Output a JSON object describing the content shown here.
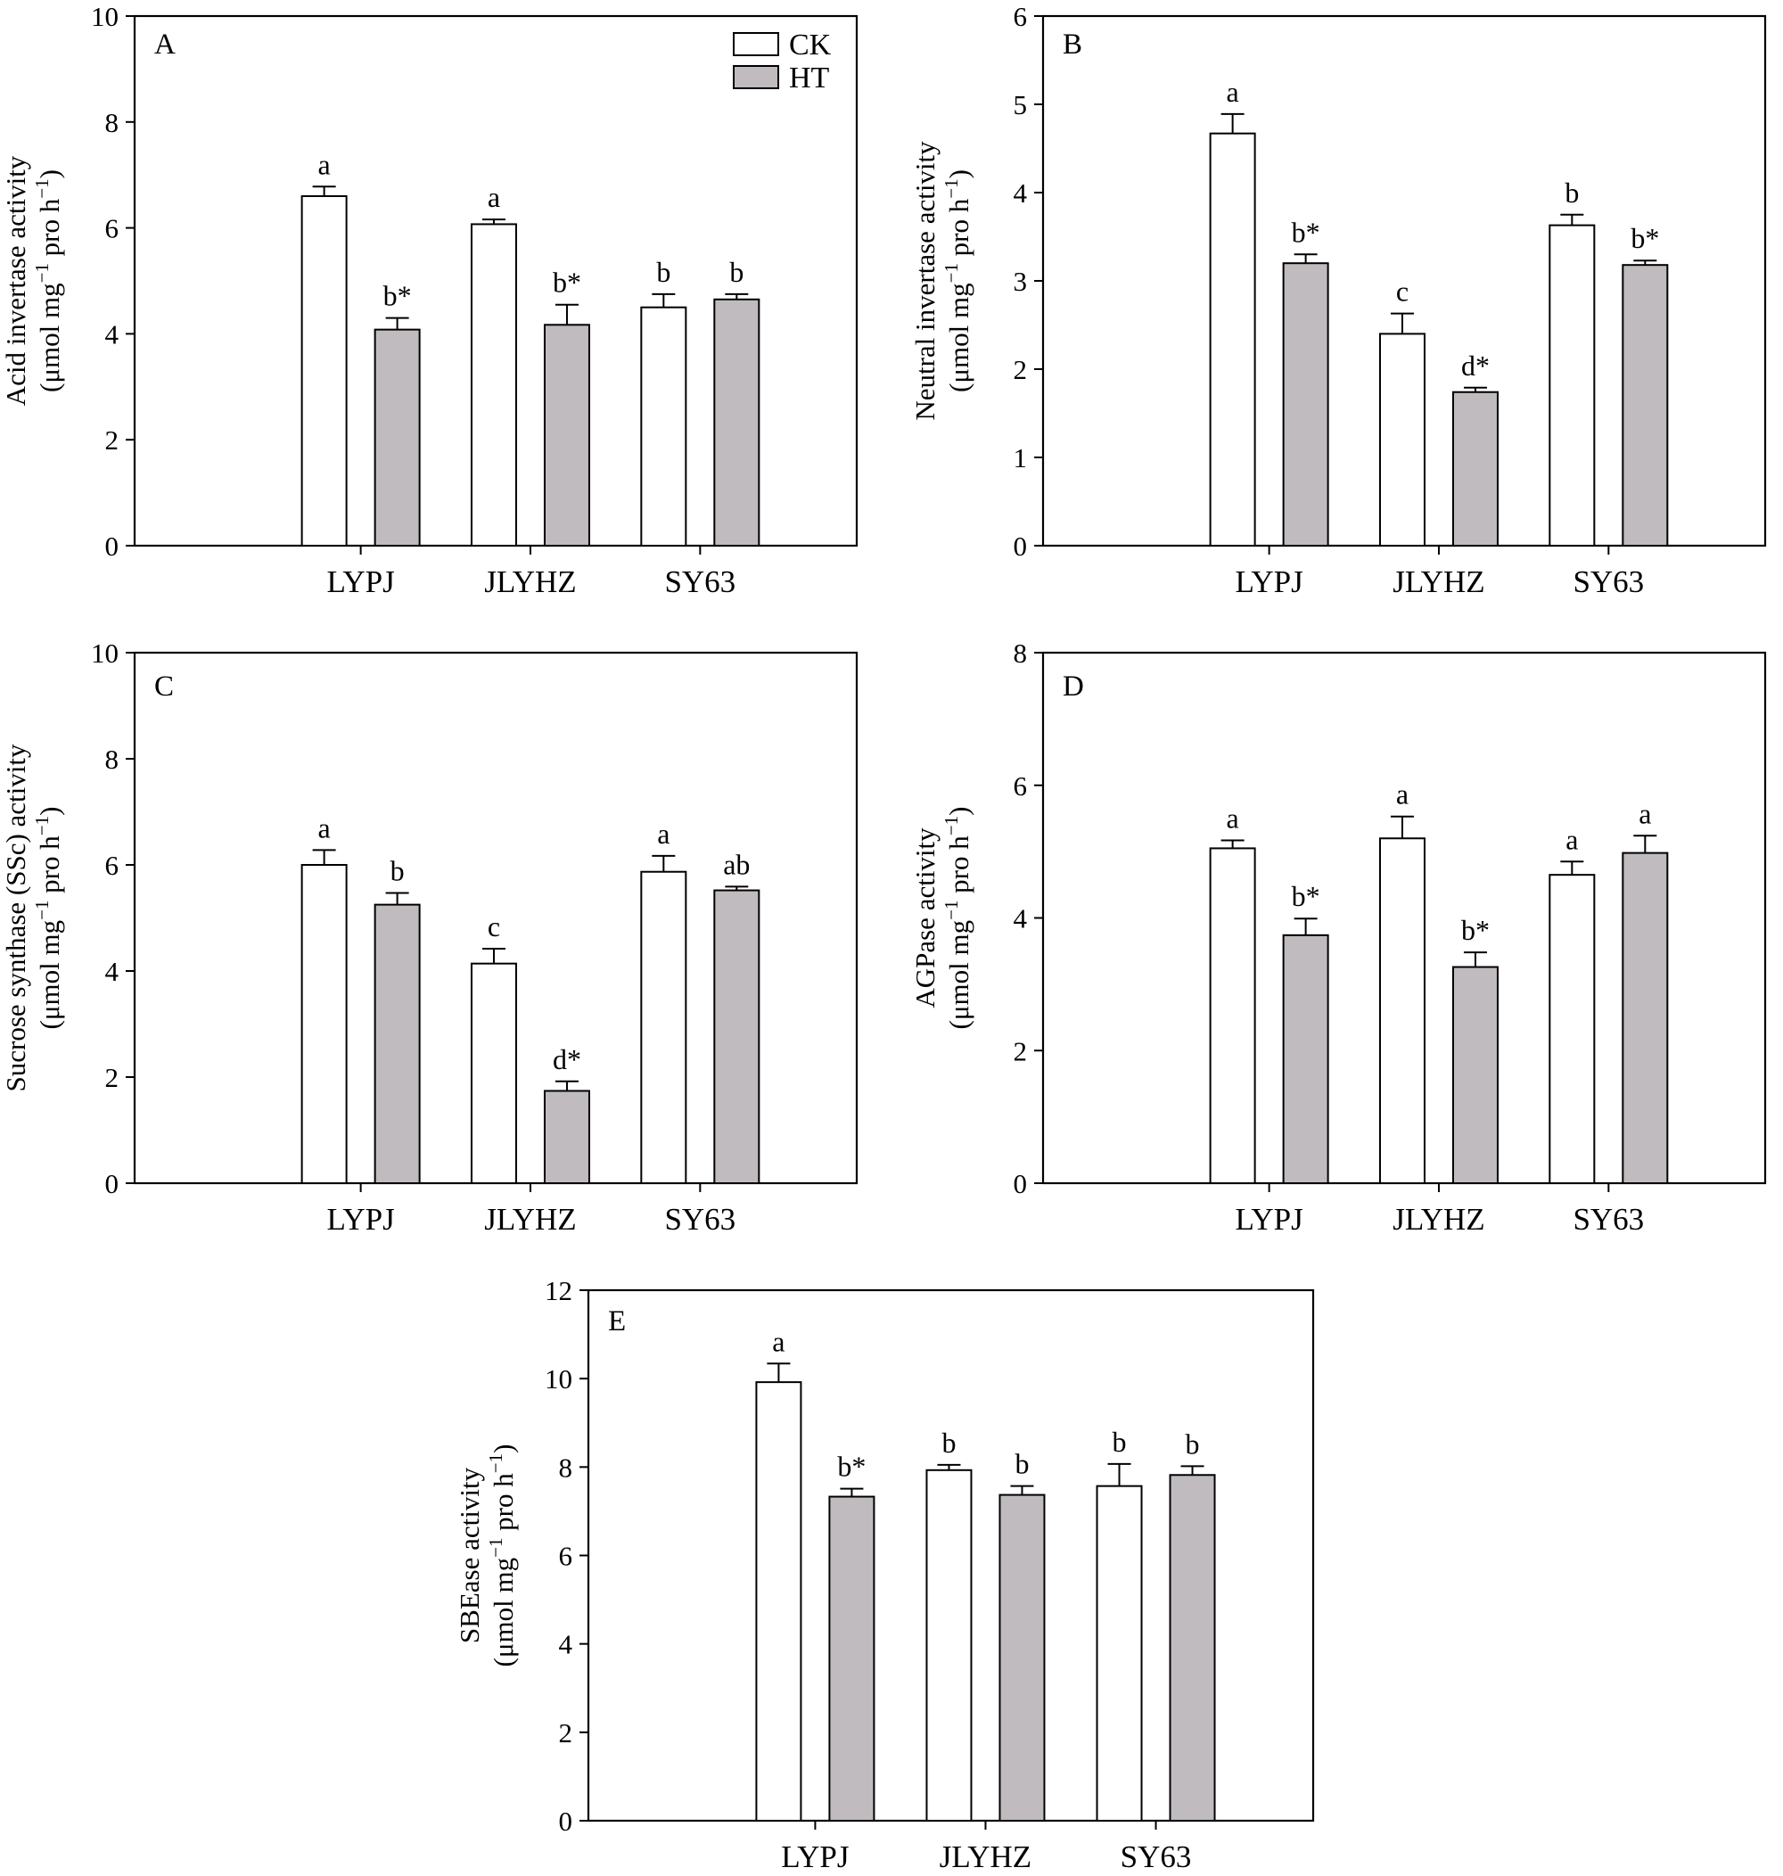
{
  "legend": [
    {
      "name": "CK",
      "color": "#ffffff"
    },
    {
      "name": "HT",
      "color": "#c0bbbf"
    }
  ],
  "chart_data": [
    {
      "type": "bar",
      "panel": "A",
      "categories": [
        "LYPJ",
        "JLYHZ",
        "SY63"
      ],
      "ylabel_line1": "Acid invertase activity",
      "ylabel_line2": [
        "(μmol mg",
        "−1",
        " pro h",
        "−1",
        ")"
      ],
      "ylim": [
        0,
        10
      ],
      "yticks": [
        0,
        2,
        4,
        6,
        8,
        10
      ],
      "series": [
        {
          "name": "CK",
          "values": [
            6.6,
            6.07,
            4.5
          ],
          "errors": [
            0.18,
            0.09,
            0.25
          ],
          "labels": [
            "a",
            "a",
            "b"
          ]
        },
        {
          "name": "HT",
          "values": [
            4.08,
            4.17,
            4.65
          ],
          "errors": [
            0.22,
            0.38,
            0.1
          ],
          "labels": [
            "b*",
            "b*",
            "b"
          ]
        }
      ]
    },
    {
      "type": "bar",
      "panel": "B",
      "categories": [
        "LYPJ",
        "JLYHZ",
        "SY63"
      ],
      "ylabel_line1": "Neutral invertase activity",
      "ylabel_line2": [
        "(μmol mg",
        "−1",
        " pro h",
        "−1",
        ")"
      ],
      "ylim": [
        0,
        6
      ],
      "yticks": [
        0,
        1,
        2,
        3,
        4,
        5,
        6
      ],
      "series": [
        {
          "name": "CK",
          "values": [
            4.67,
            2.4,
            3.63
          ],
          "errors": [
            0.22,
            0.23,
            0.12
          ],
          "labels": [
            "a",
            "c",
            "b"
          ]
        },
        {
          "name": "HT",
          "values": [
            3.2,
            1.74,
            3.18
          ],
          "errors": [
            0.1,
            0.05,
            0.05
          ],
          "labels": [
            "b*",
            "d*",
            "b*"
          ]
        }
      ]
    },
    {
      "type": "bar",
      "panel": "C",
      "categories": [
        "LYPJ",
        "JLYHZ",
        "SY63"
      ],
      "ylabel_line1": "Sucrose synthase (SSc) activity",
      "ylabel_line2": [
        "(μmol mg",
        "−1",
        " pro h",
        "−1",
        ")"
      ],
      "ylim": [
        0,
        10
      ],
      "yticks": [
        0,
        2,
        4,
        6,
        8,
        10
      ],
      "series": [
        {
          "name": "CK",
          "values": [
            6.0,
            4.14,
            5.87
          ],
          "errors": [
            0.28,
            0.28,
            0.3
          ],
          "labels": [
            "a",
            "c",
            "a"
          ]
        },
        {
          "name": "HT",
          "values": [
            5.25,
            1.74,
            5.52
          ],
          "errors": [
            0.22,
            0.18,
            0.07
          ],
          "labels": [
            "b",
            "d*",
            "ab"
          ]
        }
      ]
    },
    {
      "type": "bar",
      "panel": "D",
      "categories": [
        "LYPJ",
        "JLYHZ",
        "SY63"
      ],
      "ylabel_line1": "AGPase activity",
      "ylabel_line2": [
        "(μmol mg",
        "−1",
        " pro h",
        "−1",
        ")"
      ],
      "ylim": [
        0,
        8
      ],
      "yticks": [
        0,
        2,
        4,
        6,
        8
      ],
      "series": [
        {
          "name": "CK",
          "values": [
            5.05,
            5.2,
            4.65
          ],
          "errors": [
            0.12,
            0.33,
            0.2
          ],
          "labels": [
            "a",
            "a",
            "a"
          ]
        },
        {
          "name": "HT",
          "values": [
            3.74,
            3.26,
            4.98
          ],
          "errors": [
            0.25,
            0.22,
            0.26
          ],
          "labels": [
            "b*",
            "b*",
            "a"
          ]
        }
      ]
    },
    {
      "type": "bar",
      "panel": "E",
      "categories": [
        "LYPJ",
        "JLYHZ",
        "SY63"
      ],
      "ylabel_line1": "SBEase activity",
      "ylabel_line2": [
        "(μmol mg",
        "−1",
        " pro h",
        "−1",
        ")"
      ],
      "ylim": [
        0,
        12
      ],
      "yticks": [
        0,
        2,
        4,
        6,
        8,
        10,
        12
      ],
      "series": [
        {
          "name": "CK",
          "values": [
            9.92,
            7.93,
            7.57
          ],
          "errors": [
            0.42,
            0.12,
            0.5
          ],
          "labels": [
            "a",
            "b",
            "b"
          ]
        },
        {
          "name": "HT",
          "values": [
            7.33,
            7.37,
            7.82
          ],
          "errors": [
            0.18,
            0.2,
            0.2
          ],
          "labels": [
            "b*",
            "b",
            "b"
          ]
        }
      ]
    }
  ]
}
